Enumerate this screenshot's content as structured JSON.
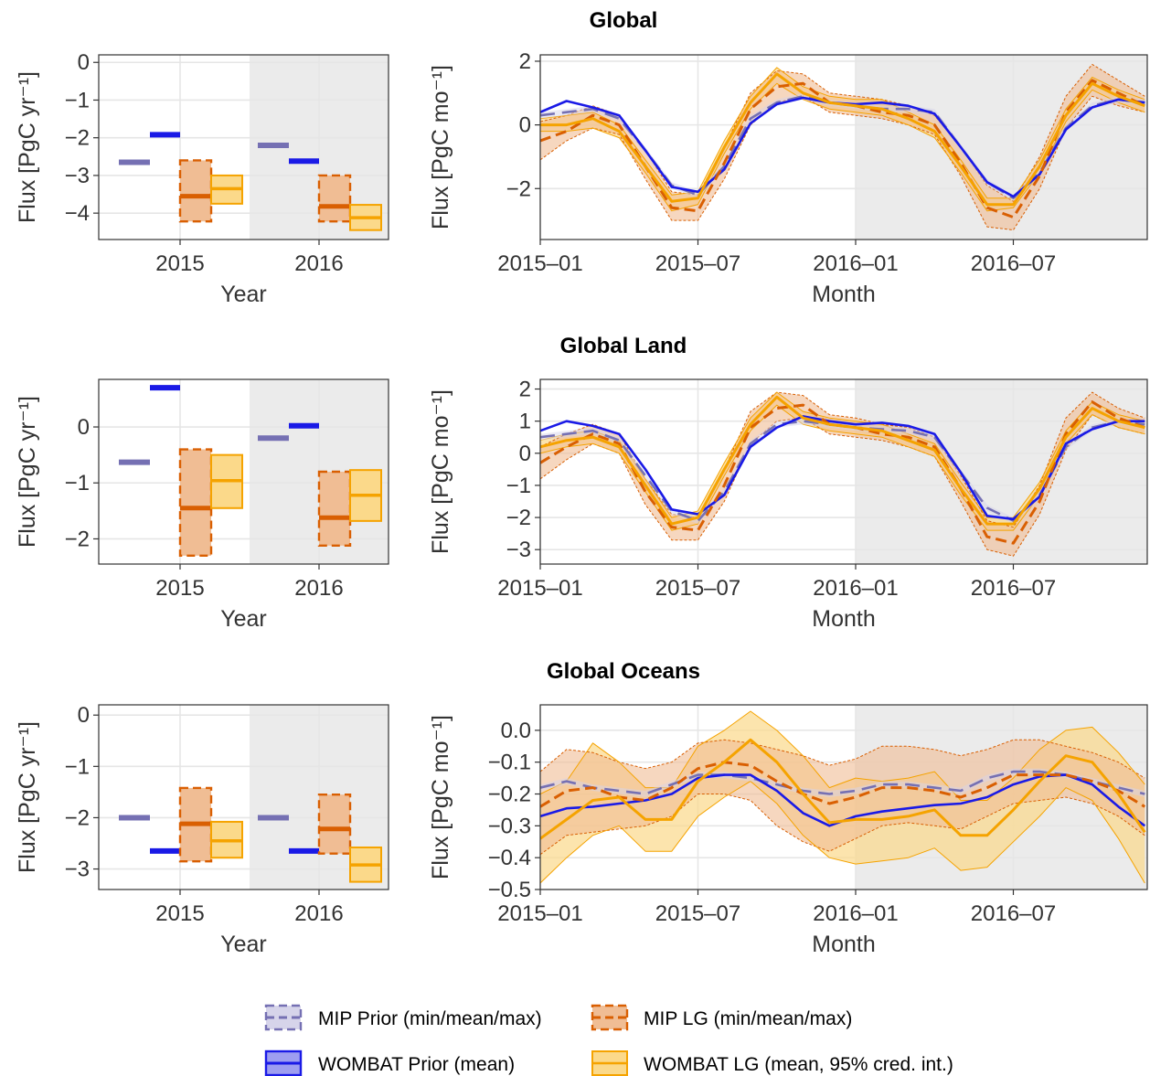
{
  "colors": {
    "mip_prior": "#7570b3",
    "wombat_prior": "#1a1ae6",
    "mip_lg": "#d95f02",
    "wombat_lg": "#f5a300",
    "mip_lg_fill": "#f0bd94",
    "wombat_lg_fill": "#fbd98a",
    "mip_prior_fill": "#d6d4ea",
    "wombat_prior_fill": "#9e9ef0",
    "shade": "#ebebeb",
    "grid": "#e6e6e6"
  },
  "legend": {
    "mip_prior": "MIP Prior (min/mean/max)",
    "mip_lg": "MIP LG (min/mean/max)",
    "wombat_prior": "WOMBAT Prior (mean)",
    "wombat_lg": "WOMBAT LG (mean, 95% cred. int.)"
  },
  "chart_data": [
    {
      "type": "bar",
      "title": "Global",
      "xlabel": "Year",
      "ylabel": "Flux [PgC yr⁻¹]",
      "categories": [
        "2015",
        "2016"
      ],
      "ylim": [
        -4.7,
        0.2
      ],
      "yticks": [
        0,
        -1,
        -2,
        -3,
        -4
      ],
      "shaded_category": "2016",
      "series": {
        "mip_prior": [
          -2.65,
          -2.2
        ],
        "wombat_prior": [
          -1.92,
          -2.62
        ],
        "mip_lg": [
          {
            "min": -4.22,
            "mean": -3.55,
            "max": -2.6
          },
          {
            "min": -4.22,
            "mean": -3.82,
            "max": -3.0
          }
        ],
        "wombat_lg": [
          {
            "lower": -3.75,
            "mean": -3.35,
            "upper": -3.0
          },
          {
            "lower": -4.45,
            "mean": -4.12,
            "upper": -3.78
          }
        ]
      }
    },
    {
      "type": "line",
      "title": "",
      "xlabel": "Month",
      "ylabel": "Flux [PgC mo⁻¹]",
      "ylim": [
        -3.6,
        2.2
      ],
      "yticks": [
        2,
        0,
        -2
      ],
      "xtick_labels": [
        "2015–01",
        "2015–07",
        "2016–01",
        "2016–07"
      ],
      "xtick_months": [
        0,
        6,
        12,
        18
      ],
      "shaded_from_month": 12,
      "months": [
        0,
        1,
        2,
        3,
        4,
        5,
        6,
        7,
        8,
        9,
        10,
        11,
        12,
        13,
        14,
        15,
        16,
        17,
        18,
        19,
        20,
        21,
        22,
        23
      ],
      "mip_prior": {
        "mean": [
          0.3,
          0.4,
          0.5,
          0.2,
          -0.8,
          -1.9,
          -2.2,
          -1.3,
          0.2,
          0.7,
          0.9,
          0.7,
          0.6,
          0.5,
          0.5,
          0.4,
          -0.7,
          -1.8,
          -2.3,
          -1.5,
          -0.1,
          0.6,
          0.8,
          0.7
        ],
        "min": [
          0.2,
          0.3,
          0.4,
          0.1,
          -0.9,
          -2.0,
          -2.3,
          -1.4,
          0.1,
          0.6,
          0.8,
          0.6,
          0.5,
          0.4,
          0.4,
          0.3,
          -0.8,
          -1.9,
          -2.4,
          -1.6,
          -0.2,
          0.5,
          0.7,
          0.6
        ],
        "max": [
          0.4,
          0.5,
          0.6,
          0.3,
          -0.7,
          -1.8,
          -2.1,
          -1.2,
          0.3,
          0.8,
          1.0,
          0.8,
          0.7,
          0.6,
          0.6,
          0.5,
          -0.6,
          -1.7,
          -2.2,
          -1.4,
          0.0,
          0.7,
          0.9,
          0.8
        ]
      },
      "wombat_prior": {
        "mean": [
          0.4,
          0.75,
          0.55,
          0.3,
          -0.8,
          -1.95,
          -2.1,
          -1.4,
          0.05,
          0.65,
          0.85,
          0.7,
          0.65,
          0.7,
          0.6,
          0.35,
          -0.7,
          -1.8,
          -2.25,
          -1.55,
          -0.15,
          0.55,
          0.8,
          0.7
        ]
      },
      "mip_lg": {
        "mean": [
          -0.5,
          -0.2,
          0.3,
          0.0,
          -1.3,
          -2.6,
          -2.7,
          -1.2,
          0.5,
          1.2,
          1.3,
          0.7,
          0.6,
          0.4,
          0.3,
          0.0,
          -1.2,
          -2.6,
          -2.9,
          -1.6,
          0.4,
          1.4,
          1.0,
          0.6
        ],
        "min": [
          -1.1,
          -0.5,
          -0.1,
          -0.3,
          -1.7,
          -3.0,
          -3.0,
          -1.7,
          0.0,
          0.7,
          0.9,
          0.4,
          0.3,
          0.2,
          0.0,
          -0.3,
          -1.6,
          -3.2,
          -3.3,
          -2.0,
          -0.1,
          0.9,
          0.6,
          0.4
        ],
        "max": [
          0.1,
          0.3,
          0.6,
          0.3,
          -0.8,
          -2.1,
          -2.2,
          -0.7,
          1.0,
          1.7,
          1.6,
          1.0,
          0.9,
          0.8,
          0.6,
          0.3,
          -0.7,
          -1.9,
          -2.4,
          -1.0,
          0.9,
          1.9,
          1.4,
          0.9
        ]
      },
      "wombat_lg": {
        "mean": [
          0.0,
          0.0,
          0.2,
          -0.2,
          -1.3,
          -2.4,
          -2.3,
          -0.7,
          0.7,
          1.6,
          1.0,
          0.7,
          0.6,
          0.5,
          0.2,
          -0.2,
          -1.3,
          -2.5,
          -2.5,
          -1.3,
          0.3,
          1.3,
          0.9,
          0.6
        ],
        "lower": [
          -0.2,
          -0.2,
          -0.1,
          -0.4,
          -1.5,
          -2.7,
          -2.5,
          -0.9,
          0.5,
          1.3,
          0.8,
          0.5,
          0.4,
          0.3,
          0.0,
          -0.4,
          -1.5,
          -2.7,
          -2.6,
          -1.5,
          0.1,
          1.1,
          0.7,
          0.4
        ],
        "upper": [
          0.2,
          0.3,
          0.4,
          0.0,
          -1.1,
          -2.2,
          -2.1,
          -0.5,
          0.9,
          1.8,
          1.2,
          0.9,
          0.8,
          0.8,
          0.4,
          0.0,
          -1.1,
          -2.3,
          -2.3,
          -1.1,
          0.5,
          1.5,
          1.1,
          0.8
        ]
      }
    },
    {
      "type": "bar",
      "title": "Global Land",
      "xlabel": "Year",
      "ylabel": "Flux [PgC yr⁻¹]",
      "categories": [
        "2015",
        "2016"
      ],
      "ylim": [
        -2.45,
        0.85
      ],
      "yticks": [
        0,
        -1,
        -2
      ],
      "shaded_category": "2016",
      "series": {
        "mip_prior": [
          -0.63,
          -0.2
        ],
        "wombat_prior": [
          0.7,
          0.02
        ],
        "mip_lg": [
          {
            "min": -2.3,
            "mean": -1.45,
            "max": -0.4
          },
          {
            "min": -2.12,
            "mean": -1.62,
            "max": -0.8
          }
        ],
        "wombat_lg": [
          {
            "lower": -1.45,
            "mean": -0.96,
            "upper": -0.5
          },
          {
            "lower": -1.68,
            "mean": -1.22,
            "upper": -0.77
          }
        ]
      }
    },
    {
      "type": "line",
      "title": "",
      "xlabel": "Month",
      "ylabel": "Flux [PgC mo⁻¹]",
      "ylim": [
        -3.45,
        2.3
      ],
      "yticks": [
        2,
        1,
        0,
        -1,
        -2,
        -3
      ],
      "xtick_labels": [
        "2015–01",
        "2015–07",
        "2016–01",
        "2016–07"
      ],
      "xtick_months": [
        0,
        6,
        12,
        18
      ],
      "shaded_from_month": 12,
      "months": [
        0,
        1,
        2,
        3,
        4,
        5,
        6,
        7,
        8,
        9,
        10,
        11,
        12,
        13,
        14,
        15,
        16,
        17,
        18,
        19,
        20,
        21,
        22,
        23
      ],
      "mip_prior": {
        "mean": [
          0.5,
          0.6,
          0.7,
          0.4,
          -0.7,
          -1.8,
          -2.1,
          -1.2,
          0.3,
          0.9,
          1.0,
          0.9,
          0.8,
          0.75,
          0.7,
          0.5,
          -0.6,
          -1.7,
          -2.1,
          -1.3,
          0.2,
          0.8,
          1.0,
          0.9
        ],
        "min": [
          0.4,
          0.5,
          0.6,
          0.3,
          -0.8,
          -1.9,
          -2.2,
          -1.3,
          0.2,
          0.8,
          0.9,
          0.8,
          0.7,
          0.65,
          0.6,
          0.4,
          -0.7,
          -1.8,
          -2.2,
          -1.4,
          0.1,
          0.7,
          0.9,
          0.8
        ],
        "max": [
          0.6,
          0.7,
          0.8,
          0.5,
          -0.6,
          -1.7,
          -2.0,
          -1.1,
          0.4,
          1.0,
          1.1,
          1.0,
          0.9,
          0.85,
          0.8,
          0.6,
          -0.5,
          -1.6,
          -2.0,
          -1.2,
          0.3,
          0.9,
          1.1,
          1.0
        ]
      },
      "wombat_prior": {
        "mean": [
          0.7,
          1.0,
          0.85,
          0.6,
          -0.5,
          -1.75,
          -1.9,
          -1.3,
          0.2,
          0.8,
          1.15,
          1.0,
          0.9,
          0.95,
          0.85,
          0.6,
          -0.6,
          -1.95,
          -2.05,
          -1.35,
          0.3,
          0.75,
          1.0,
          1.0
        ]
      },
      "mip_lg": {
        "mean": [
          -0.3,
          0.2,
          0.6,
          0.3,
          -1.2,
          -2.3,
          -2.4,
          -1.0,
          0.8,
          1.4,
          1.5,
          0.9,
          0.8,
          0.6,
          0.5,
          0.2,
          -1.1,
          -2.6,
          -2.8,
          -1.5,
          0.6,
          1.6,
          1.1,
          0.8
        ],
        "min": [
          -0.8,
          -0.2,
          0.3,
          0.0,
          -1.6,
          -2.7,
          -2.7,
          -1.5,
          0.3,
          1.0,
          1.1,
          0.6,
          0.5,
          0.4,
          0.2,
          -0.1,
          -1.5,
          -3.0,
          -3.2,
          -1.9,
          0.1,
          1.2,
          0.8,
          0.6
        ],
        "max": [
          0.2,
          0.6,
          0.9,
          0.6,
          -0.8,
          -1.9,
          -2.0,
          -0.5,
          1.3,
          1.9,
          1.8,
          1.2,
          1.1,
          0.9,
          0.8,
          0.5,
          -0.7,
          -2.1,
          -2.3,
          -1.0,
          1.1,
          1.9,
          1.4,
          1.1
        ]
      },
      "wombat_lg": {
        "mean": [
          0.2,
          0.4,
          0.5,
          0.2,
          -1.0,
          -2.2,
          -2.0,
          -0.5,
          0.9,
          1.75,
          1.1,
          0.9,
          0.8,
          0.7,
          0.4,
          0.1,
          -1.1,
          -2.2,
          -2.2,
          -1.1,
          0.5,
          1.4,
          1.0,
          0.8
        ],
        "lower": [
          0.0,
          0.2,
          0.3,
          0.0,
          -1.2,
          -2.4,
          -2.2,
          -0.7,
          0.7,
          1.5,
          0.9,
          0.7,
          0.6,
          0.5,
          0.2,
          -0.1,
          -1.3,
          -2.4,
          -2.4,
          -1.3,
          0.3,
          1.2,
          0.8,
          0.6
        ],
        "upper": [
          0.4,
          0.6,
          0.7,
          0.4,
          -0.8,
          -2.0,
          -1.8,
          -0.3,
          1.1,
          1.9,
          1.3,
          1.1,
          1.0,
          0.9,
          0.6,
          0.3,
          -0.9,
          -2.0,
          -2.0,
          -0.9,
          0.7,
          1.6,
          1.2,
          1.0
        ]
      }
    },
    {
      "type": "bar",
      "title": "Global Oceans",
      "xlabel": "Year",
      "ylabel": "Flux [PgC yr⁻¹]",
      "categories": [
        "2015",
        "2016"
      ],
      "ylim": [
        -3.4,
        0.2
      ],
      "yticks": [
        0,
        -1,
        -2,
        -3
      ],
      "shaded_category": "2016",
      "series": {
        "mip_prior": [
          -2.0,
          -2.0
        ],
        "wombat_prior": [
          -2.65,
          -2.65
        ],
        "mip_lg": [
          {
            "min": -2.85,
            "mean": -2.12,
            "max": -1.42
          },
          {
            "min": -2.7,
            "mean": -2.22,
            "max": -1.55
          }
        ],
        "wombat_lg": [
          {
            "lower": -2.78,
            "mean": -2.45,
            "upper": -2.08
          },
          {
            "lower": -3.25,
            "mean": -2.92,
            "upper": -2.58
          }
        ]
      }
    },
    {
      "type": "line",
      "title": "",
      "xlabel": "Month",
      "ylabel": "Flux [PgC mo⁻¹]",
      "ylim": [
        -0.5,
        0.08
      ],
      "yticks": [
        0.0,
        -0.1,
        -0.2,
        -0.3,
        -0.4,
        -0.5
      ],
      "xtick_labels": [
        "2015–01",
        "2015–07",
        "2016–01",
        "2016–07"
      ],
      "xtick_months": [
        0,
        6,
        12,
        18
      ],
      "shaded_from_month": 12,
      "months": [
        0,
        1,
        2,
        3,
        4,
        5,
        6,
        7,
        8,
        9,
        10,
        11,
        12,
        13,
        14,
        15,
        16,
        17,
        18,
        19,
        20,
        21,
        22,
        23
      ],
      "mip_prior": {
        "mean": [
          -0.18,
          -0.16,
          -0.18,
          -0.19,
          -0.2,
          -0.17,
          -0.14,
          -0.14,
          -0.15,
          -0.17,
          -0.19,
          -0.2,
          -0.19,
          -0.17,
          -0.17,
          -0.18,
          -0.19,
          -0.15,
          -0.13,
          -0.13,
          -0.14,
          -0.16,
          -0.18,
          -0.2
        ],
        "min": [
          -0.19,
          -0.17,
          -0.19,
          -0.2,
          -0.21,
          -0.18,
          -0.15,
          -0.15,
          -0.16,
          -0.18,
          -0.2,
          -0.21,
          -0.2,
          -0.18,
          -0.18,
          -0.19,
          -0.2,
          -0.16,
          -0.14,
          -0.14,
          -0.15,
          -0.17,
          -0.19,
          -0.21
        ],
        "max": [
          -0.17,
          -0.15,
          -0.17,
          -0.18,
          -0.19,
          -0.16,
          -0.13,
          -0.13,
          -0.14,
          -0.16,
          -0.18,
          -0.19,
          -0.18,
          -0.16,
          -0.16,
          -0.17,
          -0.18,
          -0.14,
          -0.12,
          -0.12,
          -0.13,
          -0.15,
          -0.17,
          -0.19
        ]
      },
      "wombat_prior": {
        "mean": [
          -0.27,
          -0.245,
          -0.24,
          -0.23,
          -0.22,
          -0.2,
          -0.15,
          -0.14,
          -0.14,
          -0.19,
          -0.26,
          -0.3,
          -0.27,
          -0.255,
          -0.245,
          -0.235,
          -0.23,
          -0.21,
          -0.17,
          -0.145,
          -0.14,
          -0.17,
          -0.24,
          -0.3
        ]
      },
      "mip_lg": {
        "mean": [
          -0.24,
          -0.19,
          -0.18,
          -0.21,
          -0.22,
          -0.18,
          -0.12,
          -0.1,
          -0.11,
          -0.16,
          -0.2,
          -0.23,
          -0.21,
          -0.18,
          -0.18,
          -0.19,
          -0.21,
          -0.18,
          -0.14,
          -0.14,
          -0.14,
          -0.16,
          -0.19,
          -0.24
        ],
        "min": [
          -0.39,
          -0.33,
          -0.32,
          -0.31,
          -0.3,
          -0.27,
          -0.2,
          -0.2,
          -0.22,
          -0.3,
          -0.35,
          -0.38,
          -0.34,
          -0.3,
          -0.29,
          -0.3,
          -0.31,
          -0.27,
          -0.23,
          -0.22,
          -0.21,
          -0.23,
          -0.27,
          -0.33
        ],
        "max": [
          -0.13,
          -0.06,
          -0.07,
          -0.1,
          -0.12,
          -0.1,
          -0.04,
          -0.03,
          -0.04,
          -0.06,
          -0.08,
          -0.11,
          -0.09,
          -0.05,
          -0.05,
          -0.06,
          -0.08,
          -0.06,
          -0.03,
          -0.03,
          -0.05,
          -0.07,
          -0.1,
          -0.15
        ]
      },
      "wombat_lg": {
        "mean": [
          -0.34,
          -0.28,
          -0.22,
          -0.21,
          -0.28,
          -0.28,
          -0.16,
          -0.1,
          -0.03,
          -0.1,
          -0.2,
          -0.29,
          -0.28,
          -0.28,
          -0.27,
          -0.25,
          -0.33,
          -0.33,
          -0.25,
          -0.16,
          -0.08,
          -0.1,
          -0.2,
          -0.32
        ],
        "lower": [
          -0.48,
          -0.4,
          -0.33,
          -0.3,
          -0.38,
          -0.38,
          -0.27,
          -0.21,
          -0.16,
          -0.23,
          -0.33,
          -0.4,
          -0.42,
          -0.41,
          -0.4,
          -0.37,
          -0.44,
          -0.43,
          -0.35,
          -0.27,
          -0.18,
          -0.22,
          -0.34,
          -0.48
        ],
        "upper": [
          -0.2,
          -0.16,
          -0.04,
          -0.1,
          -0.18,
          -0.18,
          -0.05,
          0.0,
          0.06,
          0.0,
          -0.08,
          -0.18,
          -0.15,
          -0.16,
          -0.15,
          -0.13,
          -0.22,
          -0.22,
          -0.15,
          -0.06,
          0.0,
          0.01,
          -0.07,
          -0.17
        ]
      }
    }
  ]
}
